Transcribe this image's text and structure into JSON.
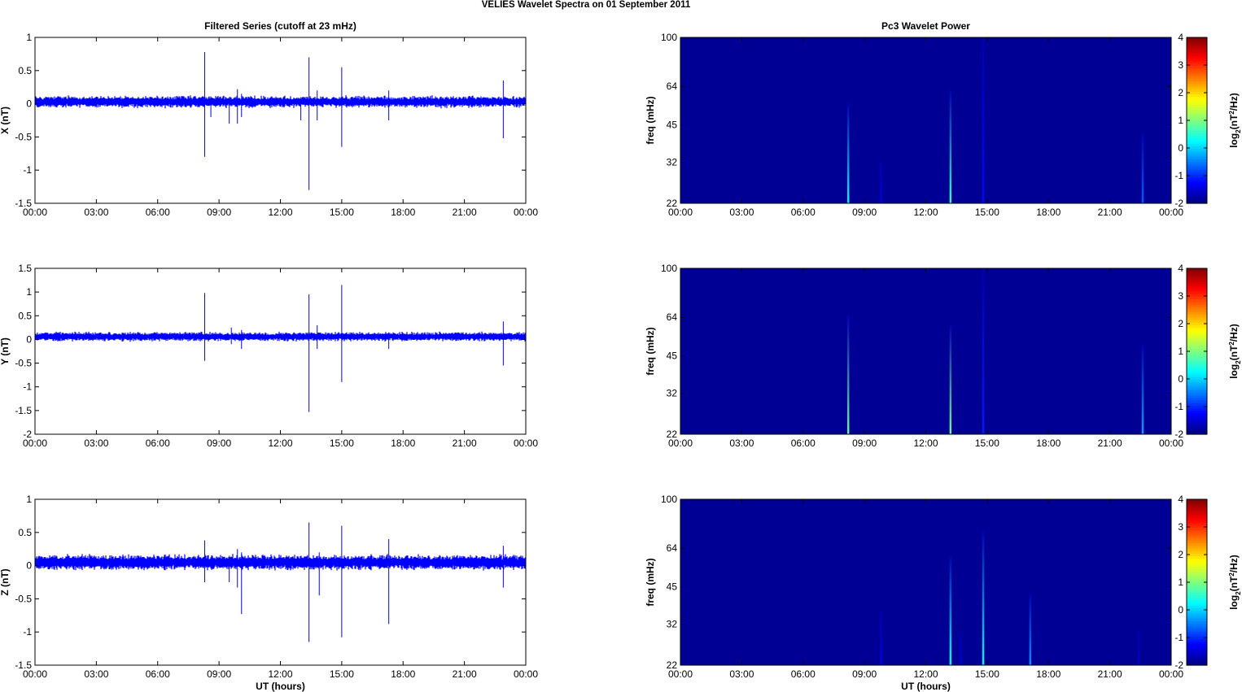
{
  "figure": {
    "title": "VELIES Wavelet Spectra on 01 September 2011"
  },
  "colors": {
    "trace": "#0000ff",
    "background": "#00008f",
    "axis": "#000000"
  },
  "colormap": "jet",
  "time_ticks": [
    "00:00",
    "03:00",
    "06:00",
    "09:00",
    "12:00",
    "15:00",
    "18:00",
    "21:00",
    "00:00"
  ],
  "chart_data": [
    {
      "type": "line",
      "title": "Filtered Series (cutoff at 23 mHz)",
      "xlabel": "",
      "ylabel": "X (nT)",
      "xlim": [
        0,
        24
      ],
      "ylim": [
        -1.5,
        1
      ],
      "yticks": [
        "-1.5",
        "-1",
        "-0.5",
        "0",
        "0.5",
        "1"
      ],
      "yticks_values": [
        -1.5,
        -1,
        -0.5,
        0,
        0.5,
        1
      ],
      "noise_amplitude": 0.1,
      "baseline": 0.03,
      "spikes": [
        {
          "t": 8.3,
          "max": 0.78,
          "min": -0.8
        },
        {
          "t": 8.6,
          "max": 0.05,
          "min": -0.2
        },
        {
          "t": 9.5,
          "max": 0.1,
          "min": -0.3
        },
        {
          "t": 9.9,
          "max": 0.22,
          "min": -0.3
        },
        {
          "t": 10.1,
          "max": 0.15,
          "min": -0.2
        },
        {
          "t": 13.0,
          "max": 0.1,
          "min": -0.25
        },
        {
          "t": 13.4,
          "max": 0.7,
          "min": -1.3
        },
        {
          "t": 13.8,
          "max": 0.2,
          "min": -0.25
        },
        {
          "t": 15.0,
          "max": 0.55,
          "min": -0.65
        },
        {
          "t": 17.3,
          "max": 0.2,
          "min": -0.25
        },
        {
          "t": 22.9,
          "max": 0.35,
          "min": -0.52
        }
      ]
    },
    {
      "type": "line",
      "title": "",
      "xlabel": "",
      "ylabel": "Y (nT)",
      "xlim": [
        0,
        24
      ],
      "ylim": [
        -2,
        1.5
      ],
      "yticks": [
        "-2",
        "-1.5",
        "-1",
        "-0.5",
        "0",
        "0.5",
        "1",
        "1.5"
      ],
      "yticks_values": [
        -2,
        -1.5,
        -1,
        -0.5,
        0,
        0.5,
        1,
        1.5
      ],
      "noise_amplitude": 0.11,
      "baseline": 0.06,
      "spikes": [
        {
          "t": 8.3,
          "max": 0.98,
          "min": -0.45
        },
        {
          "t": 9.6,
          "max": 0.25,
          "min": -0.1
        },
        {
          "t": 10.1,
          "max": 0.2,
          "min": -0.2
        },
        {
          "t": 13.4,
          "max": 0.95,
          "min": -1.53
        },
        {
          "t": 13.8,
          "max": 0.3,
          "min": -0.2
        },
        {
          "t": 15.0,
          "max": 1.15,
          "min": -0.9
        },
        {
          "t": 17.3,
          "max": 0.15,
          "min": -0.2
        },
        {
          "t": 22.9,
          "max": 0.38,
          "min": -0.55
        }
      ]
    },
    {
      "type": "line",
      "title": "",
      "xlabel": "UT (hours)",
      "ylabel": "Z (nT)",
      "xlim": [
        0,
        24
      ],
      "ylim": [
        -1.5,
        1
      ],
      "yticks": [
        "-1.5",
        "-1",
        "-0.5",
        "0",
        "0.5",
        "1"
      ],
      "yticks_values": [
        -1.5,
        -1,
        -0.5,
        0,
        0.5,
        1
      ],
      "noise_amplitude": 0.13,
      "baseline": 0.05,
      "spikes": [
        {
          "t": 8.3,
          "max": 0.38,
          "min": -0.25
        },
        {
          "t": 9.5,
          "max": 0.15,
          "min": -0.25
        },
        {
          "t": 9.9,
          "max": 0.25,
          "min": -0.33
        },
        {
          "t": 10.1,
          "max": 0.2,
          "min": -0.73
        },
        {
          "t": 13.4,
          "max": 0.65,
          "min": -1.15
        },
        {
          "t": 13.9,
          "max": 0.2,
          "min": -0.45
        },
        {
          "t": 15.0,
          "max": 0.6,
          "min": -1.08
        },
        {
          "t": 17.3,
          "max": 0.4,
          "min": -0.88
        },
        {
          "t": 22.9,
          "max": 0.3,
          "min": -0.33
        }
      ]
    },
    {
      "type": "heatmap",
      "title": "Pc3 Wavelet Power",
      "xlabel": "",
      "ylabel": "freq (mHz)",
      "xlim": [
        0,
        24
      ],
      "ylim": [
        22,
        100
      ],
      "yscale": "log",
      "yticks": [
        "22",
        "32",
        "45",
        "64",
        "100"
      ],
      "yticks_values": [
        22,
        32,
        45,
        64,
        100
      ],
      "clim": [
        -2,
        4
      ],
      "colorbar_ticks": [
        "-2",
        "-1",
        "0",
        "1",
        "2",
        "3",
        "4"
      ],
      "colorbar_label": "log2(nT2/Hz)",
      "background_value": -2,
      "bursts": [
        {
          "t": 8.2,
          "level": 0.2,
          "fmax": 55
        },
        {
          "t": 9.8,
          "level": -1.4,
          "fmax": 32
        },
        {
          "t": 13.2,
          "level": 0.6,
          "fmax": 62
        },
        {
          "t": 14.8,
          "level": -1.2,
          "fmax": 100
        },
        {
          "t": 22.6,
          "level": -0.7,
          "fmax": 42
        }
      ]
    },
    {
      "type": "heatmap",
      "title": "",
      "xlabel": "",
      "ylabel": "freq (mHz)",
      "xlim": [
        0,
        24
      ],
      "ylim": [
        22,
        100
      ],
      "yscale": "log",
      "yticks": [
        "22",
        "32",
        "45",
        "64",
        "100"
      ],
      "yticks_values": [
        22,
        32,
        45,
        64,
        100
      ],
      "clim": [
        -2,
        4
      ],
      "colorbar_ticks": [
        "-2",
        "-1",
        "0",
        "1",
        "2",
        "3",
        "4"
      ],
      "colorbar_label": "log2(nT2/Hz)",
      "background_value": -2,
      "bursts": [
        {
          "t": 8.2,
          "level": 0.8,
          "fmax": 65
        },
        {
          "t": 13.2,
          "level": 0.9,
          "fmax": 60
        },
        {
          "t": 14.8,
          "level": -1.1,
          "fmax": 100
        },
        {
          "t": 22.6,
          "level": -0.3,
          "fmax": 50
        }
      ]
    },
    {
      "type": "heatmap",
      "title": "",
      "xlabel": "UT (hours)",
      "ylabel": "freq (mHz)",
      "xlim": [
        0,
        24
      ],
      "ylim": [
        22,
        100
      ],
      "yscale": "log",
      "yticks": [
        "22",
        "32",
        "45",
        "64",
        "100"
      ],
      "yticks_values": [
        22,
        32,
        45,
        64,
        100
      ],
      "clim": [
        -2,
        4
      ],
      "colorbar_ticks": [
        "-2",
        "-1",
        "0",
        "1",
        "2",
        "3",
        "4"
      ],
      "colorbar_label": "log2(nT2/Hz)",
      "background_value": -2,
      "bursts": [
        {
          "t": 9.8,
          "level": -1.4,
          "fmax": 36
        },
        {
          "t": 13.2,
          "level": 0.3,
          "fmax": 60
        },
        {
          "t": 13.7,
          "level": -1.5,
          "fmax": 30
        },
        {
          "t": 14.8,
          "level": 0.2,
          "fmax": 75
        },
        {
          "t": 17.1,
          "level": -0.4,
          "fmax": 42
        },
        {
          "t": 22.4,
          "level": -1.6,
          "fmax": 30
        }
      ]
    }
  ]
}
